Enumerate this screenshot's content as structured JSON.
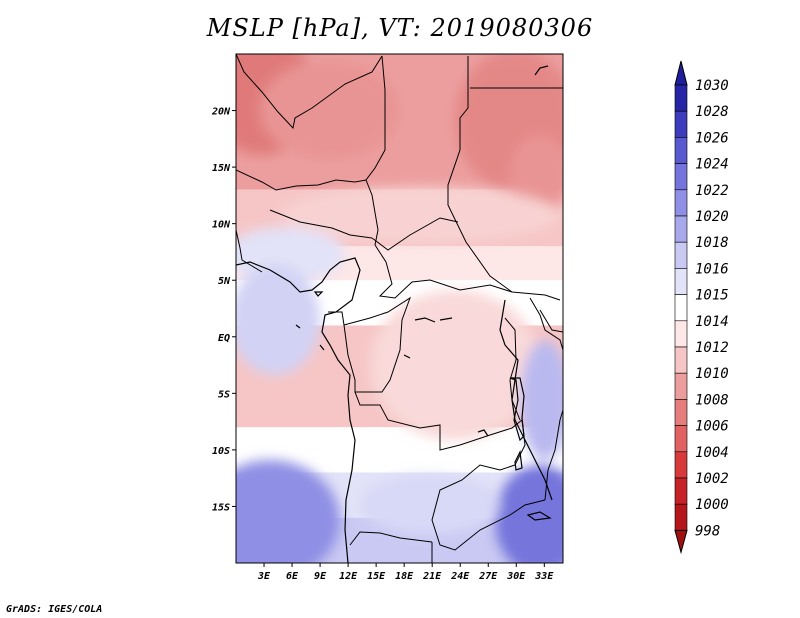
{
  "chart_data": {
    "type": "heatmap",
    "title": "MSLP [hPa], VT: 2019080306",
    "variable": "MSLP",
    "units": "hPa",
    "valid_time": "2019080306",
    "x_ticks": [
      "3E",
      "6E",
      "9E",
      "12E",
      "15E",
      "18E",
      "21E",
      "24E",
      "27E",
      "30E",
      "33E"
    ],
    "x_tick_values": [
      3,
      6,
      9,
      12,
      15,
      18,
      21,
      24,
      27,
      30,
      33
    ],
    "y_ticks": [
      "20N",
      "15N",
      "10N",
      "5N",
      "EQ",
      "5S",
      "10S",
      "15S"
    ],
    "y_tick_values": [
      20,
      15,
      10,
      5,
      0,
      -5,
      -10,
      -15
    ],
    "lon_range": [
      0,
      35
    ],
    "lat_range": [
      -20,
      25
    ],
    "colorbar": {
      "labels": [
        "998",
        "1000",
        "1002",
        "1004",
        "1006",
        "1008",
        "1010",
        "1012",
        "1014",
        "1015",
        "1016",
        "1018",
        "1020",
        "1022",
        "1024",
        "1026",
        "1028",
        "1030"
      ],
      "colors": [
        "#a50f15",
        "#b4161b",
        "#c62127",
        "#d73a3a",
        "#e06262",
        "#e57d7d",
        "#ec9e9e",
        "#f6c6c6",
        "#fde7e7",
        "#ffffff",
        "#e2e2f8",
        "#c9c9f3",
        "#a8a8ec",
        "#8f8fe5",
        "#7474dc",
        "#5a5ad0",
        "#3c3cbc",
        "#2525a6"
      ],
      "under_color": "#a01010",
      "over_color": "#201e9a"
    },
    "field_bands": [
      {
        "label": "1010",
        "lat_from": 25,
        "lat_to": 13
      },
      {
        "label": "1012",
        "lat_from": 13,
        "lat_to": 8
      },
      {
        "label": "1014",
        "lat_from": 8,
        "lat_to": 5
      },
      {
        "label": "1015",
        "lat_from": 5,
        "lat_to": 1
      },
      {
        "label": "1012",
        "lat_from": 1,
        "lat_to": -8
      },
      {
        "label": "1015",
        "lat_from": -8,
        "lat_to": -12
      },
      {
        "label": "1016",
        "lat_from": -12,
        "lat_to": -16
      },
      {
        "label": "1018",
        "lat_from": -16,
        "lat_to": -20
      }
    ]
  },
  "footer": {
    "credit": "GrADS: IGES/COLA"
  }
}
